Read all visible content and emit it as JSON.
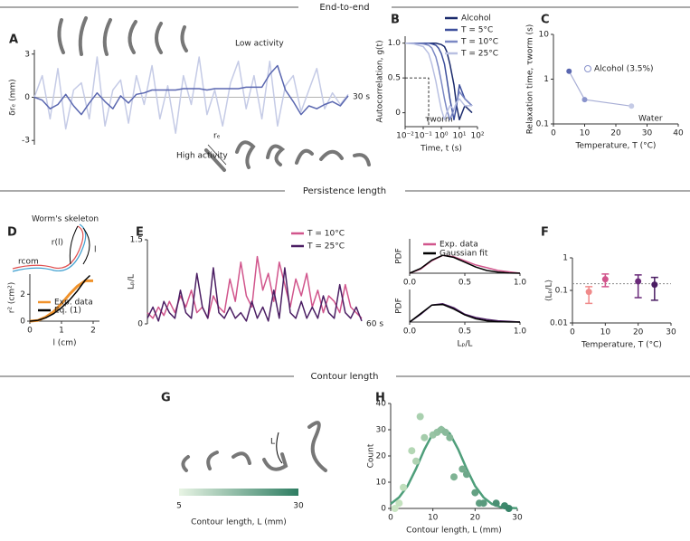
{
  "sections": [
    "End-to-end",
    "Persistence length",
    "Contour length"
  ],
  "chart_data": [
    {
      "panel": "A",
      "type": "line",
      "ylabel": "δrₑ (mm)",
      "ylim": [
        -3.3,
        3.3
      ],
      "yticks": [
        3,
        0,
        -3
      ],
      "scale_label": "30 s",
      "annotations": [
        "Low activity",
        "High activity",
        "rₑ"
      ],
      "series": [
        {
          "color": "#c5cbe6",
          "values": [
            0,
            1.5,
            -1.5,
            2,
            -2.2,
            0.5,
            1,
            -1.5,
            2.8,
            -2,
            0.5,
            1.2,
            -1.8,
            1.5,
            -0.5,
            2.2,
            -1.5,
            0.8,
            -2.5,
            1.5,
            -0.5,
            2.8,
            -1.2,
            0.5,
            -2,
            1,
            2.5,
            -0.8,
            1.5,
            -1.5,
            2.5,
            -2,
            0.8,
            1.5,
            -1,
            0.5,
            2,
            -0.8,
            0.3,
            -0.5,
            0.2
          ]
        },
        {
          "color": "#5a67b0",
          "values": [
            0,
            -0.2,
            -0.8,
            -0.5,
            0.2,
            -0.6,
            -1.2,
            -0.4,
            0.3,
            -0.3,
            -0.8,
            0.1,
            -0.4,
            0.2,
            0.3,
            0.5,
            0.5,
            0.5,
            0.5,
            0.6,
            0.6,
            0.6,
            0.5,
            0.6,
            0.6,
            0.6,
            0.6,
            0.7,
            0.7,
            0.7,
            1.6,
            2.2,
            0.5,
            -0.3,
            -1.2,
            -0.6,
            -0.8,
            -0.5,
            -0.3,
            -0.6,
            0.1
          ]
        }
      ]
    },
    {
      "panel": "B",
      "type": "line",
      "xscale": "log",
      "xlim": [
        0.01,
        100
      ],
      "ylim": [
        -0.2,
        1.1
      ],
      "xticks": [
        {
          "value": 0.01,
          "label": "10⁻²"
        },
        {
          "value": 0.1,
          "label": "10⁻¹"
        },
        {
          "value": 1,
          "label": "10⁰"
        },
        {
          "value": 10,
          "label": "10¹"
        },
        {
          "value": 100,
          "label": "10²"
        }
      ],
      "yticks": [
        0,
        0.5,
        {
          "value": 1,
          "label": "1.0"
        }
      ],
      "xlabel": "Time, t (s)",
      "ylabel": "Autocorrelation, g(t)",
      "annotations": [
        "τworm"
      ],
      "guide": [
        0.2,
        0.5
      ],
      "x": [
        0.01,
        0.03,
        0.1,
        0.2,
        0.3,
        0.5,
        0.7,
        1,
        1.5,
        2,
        3,
        5,
        7,
        10,
        20,
        50
      ],
      "series": [
        {
          "name": "Alcohol",
          "color": "#1a2a6c",
          "values": [
            1,
            1,
            1,
            1,
            1,
            1,
            0.99,
            0.98,
            0.95,
            0.88,
            0.7,
            0.4,
            0.1,
            -0.1,
            0.1,
            0
          ]
        },
        {
          "name": "T = 5°C",
          "color": "#3d4f9c",
          "values": [
            1,
            1,
            1,
            1,
            0.99,
            0.97,
            0.93,
            0.85,
            0.7,
            0.5,
            0.2,
            -0.1,
            0.1,
            0.4,
            0.2,
            0.1
          ]
        },
        {
          "name": "T = 10°C",
          "color": "#7b88c4",
          "values": [
            1,
            1,
            0.99,
            0.97,
            0.93,
            0.8,
            0.65,
            0.45,
            0.2,
            0.05,
            -0.1,
            0.05,
            0.15,
            0.3,
            0.2,
            0.1
          ]
        },
        {
          "name": "T = 25°C",
          "color": "#b9c0e2",
          "values": [
            1,
            0.99,
            0.95,
            0.85,
            0.7,
            0.45,
            0.25,
            0.05,
            -0.1,
            0,
            0.1,
            0.05,
            0.15,
            0.2,
            0.1,
            0.1
          ]
        }
      ]
    },
    {
      "panel": "C",
      "type": "scatter",
      "yscale": "log",
      "xlim": [
        0,
        40
      ],
      "ylim": [
        0.1,
        10
      ],
      "xticks": [
        0,
        10,
        20,
        30,
        40
      ],
      "yticks": [
        0.1,
        1,
        10
      ],
      "xlabel": "Temperature, T (°C)",
      "ylabel": "Relaxation time, τworm (s)",
      "legend_entry": "Alcohol (3.5%)",
      "annotations": [
        "Water"
      ],
      "x": [
        5,
        10,
        25
      ],
      "values": [
        1.5,
        0.35,
        0.25
      ],
      "colors": [
        "#5a67b0",
        "#8a94cc",
        "#c5cbe6"
      ],
      "line_color": "#a9afd6"
    },
    {
      "panel": "D",
      "type": "line",
      "xlim": [
        0,
        2.2
      ],
      "ylim": [
        0,
        3.5
      ],
      "xticks": [
        0,
        1,
        2
      ],
      "yticks": [
        0,
        2
      ],
      "xlabel": "l (cm)",
      "ylabel": "r² (cm²)",
      "annotations": [
        "Worm's skeleton",
        "r(l)",
        "l",
        "rcom"
      ],
      "series": [
        {
          "name": "Exp. data",
          "color": "#f0922b",
          "x": [
            0,
            0.25,
            0.5,
            0.75,
            1,
            1.25,
            1.5,
            1.75,
            2
          ],
          "values": [
            0,
            0.05,
            0.3,
            0.7,
            1.3,
            2.0,
            2.6,
            3.0,
            3.0
          ]
        },
        {
          "name": "Eq. (1)",
          "color": "#000000",
          "x": [
            0,
            0.25,
            0.5,
            0.75,
            1,
            1.25,
            1.5,
            1.75,
            1.9
          ],
          "values": [
            0,
            0.06,
            0.25,
            0.56,
            1.0,
            1.56,
            2.25,
            3.06,
            3.4
          ]
        }
      ]
    },
    {
      "panel": "E",
      "type": "line",
      "ylim": [
        0,
        1.5
      ],
      "yticks": [
        0,
        1.5
      ],
      "ylabel": "Lₚ/L",
      "scale_label": "60 s",
      "series": [
        {
          "name": "T = 10°C",
          "color": "#d1558c",
          "values": [
            0.2,
            0.1,
            0.3,
            0.15,
            0.4,
            0.2,
            0.5,
            0.3,
            0.6,
            0.2,
            0.3,
            0.1,
            0.5,
            0.3,
            0.2,
            0.8,
            0.4,
            1.1,
            0.5,
            0.3,
            1.2,
            0.6,
            0.9,
            0.4,
            1.1,
            0.7,
            0.3,
            0.8,
            0.5,
            0.9,
            0.3,
            0.6,
            0.2,
            0.5,
            0.4,
            0.2,
            0.7,
            0.3,
            0.2,
            0.1
          ]
        },
        {
          "name": "T = 25°C",
          "color": "#4b1e63",
          "values": [
            0.1,
            0.3,
            0.05,
            0.4,
            0.2,
            0.1,
            0.6,
            0.2,
            0.1,
            0.9,
            0.3,
            0.1,
            1.0,
            0.2,
            0.1,
            0.3,
            0.1,
            0.2,
            0.05,
            0.4,
            0.1,
            0.3,
            0.05,
            0.6,
            0.1,
            1.0,
            0.2,
            0.1,
            0.4,
            0.1,
            0.3,
            0.1,
            0.5,
            0.2,
            0.1,
            0.7,
            0.2,
            0.1,
            0.3,
            0.05
          ]
        }
      ]
    },
    {
      "type": "line",
      "xlim": [
        0,
        1
      ],
      "ylim": [
        0,
        2.5
      ],
      "xticks": [
        {
          "value": 0,
          "label": "0.0"
        },
        0.5,
        {
          "value": 1,
          "label": "1.0"
        }
      ],
      "ylabel": "PDF",
      "x": [
        0,
        0.1,
        0.2,
        0.3,
        0.4,
        0.5,
        0.6,
        0.7,
        0.8,
        0.9,
        1
      ],
      "series": [
        {
          "name": "Exp. data",
          "color": "#d1558c",
          "values": [
            0,
            0.3,
            0.9,
            1.3,
            1.2,
            0.9,
            0.6,
            0.4,
            0.2,
            0.1,
            0
          ]
        },
        {
          "name": "Gaussian fit",
          "color": "#000000",
          "values": [
            0,
            0.35,
            0.95,
            1.3,
            1.15,
            0.8,
            0.45,
            0.2,
            0.08,
            0.02,
            0
          ]
        }
      ]
    },
    {
      "type": "line",
      "xlim": [
        0,
        1
      ],
      "ylim": [
        0,
        2.5
      ],
      "xticks": [
        {
          "value": 0,
          "label": "0.0"
        },
        0.5,
        {
          "value": 1,
          "label": "1.0"
        }
      ],
      "ylabel": "PDF",
      "xlabel": "Lₚ/L",
      "x": [
        0,
        0.1,
        0.2,
        0.3,
        0.4,
        0.5,
        0.6,
        0.7,
        0.8,
        0.9,
        1
      ],
      "series": [
        {
          "color": "#4b1e63",
          "values": [
            0,
            0.6,
            1.3,
            1.4,
            1.1,
            0.6,
            0.35,
            0.2,
            0.1,
            0.05,
            0
          ]
        },
        {
          "color": "#000000",
          "values": [
            0,
            0.65,
            1.3,
            1.35,
            1.0,
            0.55,
            0.25,
            0.1,
            0.03,
            0.01,
            0
          ]
        }
      ]
    },
    {
      "panel": "F",
      "type": "errorbar",
      "yscale": "log",
      "xlim": [
        0,
        30
      ],
      "ylim": [
        0.01,
        1
      ],
      "xticks": [
        0,
        10,
        20,
        30
      ],
      "yticks": [
        0.01,
        0.1,
        1
      ],
      "xlabel": "Temperature, T (°C)",
      "ylabel": "⟨Lₚ/L⟩",
      "reference": 0.16,
      "x": [
        5,
        10,
        20,
        25
      ],
      "values": [
        0.09,
        0.22,
        0.19,
        0.15
      ],
      "err_low": [
        0.04,
        0.13,
        0.06,
        0.05
      ],
      "err_high": [
        0.13,
        0.32,
        0.3,
        0.25
      ],
      "colors": [
        "#f08a8a",
        "#d1558c",
        "#6a2a7a",
        "#4b1e63"
      ]
    },
    {
      "panel": "G",
      "type": "colorbar",
      "xlim": [
        5,
        30
      ],
      "xticks": [
        5,
        30
      ],
      "colors": [
        "#e8f4e4",
        "#2e7d62"
      ],
      "xlabel": "Contour length, L (mm)",
      "annotations": [
        "L"
      ]
    },
    {
      "panel": "H",
      "type": "scatter",
      "xlim": [
        0,
        30
      ],
      "ylim": [
        0,
        40
      ],
      "xticks": [
        0,
        10,
        20,
        30
      ],
      "yticks": [
        0,
        10,
        20,
        30,
        40
      ],
      "xlabel": "Contour length, L (mm)",
      "ylabel": "Count",
      "colormap": [
        "#cfe9c6",
        "#2e7d62"
      ],
      "fit_color": "#4e9e7a",
      "x": [
        1,
        2,
        3,
        5,
        6,
        7,
        8,
        10,
        11,
        12,
        13,
        14,
        15,
        17,
        18,
        20,
        21,
        22,
        25,
        27,
        28
      ],
      "values": [
        0,
        2,
        8,
        22,
        18,
        35,
        27,
        28,
        29,
        30,
        29,
        27,
        12,
        15,
        13,
        6,
        2,
        2,
        2,
        1,
        0
      ],
      "fit_x": [
        0,
        2,
        4,
        6,
        8,
        10,
        12,
        14,
        16,
        18,
        20,
        22,
        24,
        26,
        28,
        30
      ],
      "fit_y": [
        1.74,
        4.2,
        8.6,
        15.1,
        22.5,
        28.6,
        31,
        28.6,
        22.5,
        15.1,
        8.6,
        4.2,
        1.7,
        0.6,
        0.2,
        0.1
      ]
    }
  ]
}
